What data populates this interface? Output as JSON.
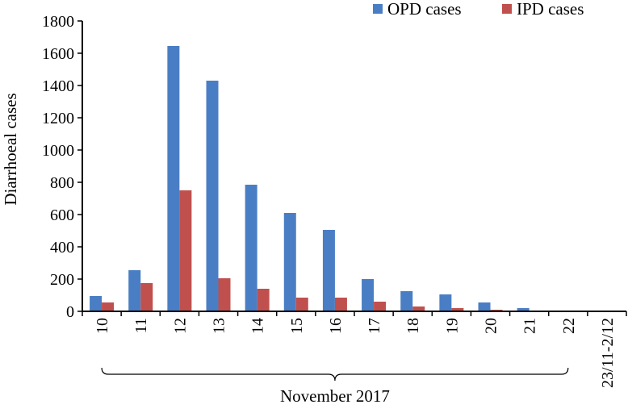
{
  "chart_data": {
    "type": "bar",
    "title": "",
    "ylabel": "Diarrhoeal cases",
    "xlabel": "",
    "group_label": "November 2017",
    "categories": [
      "10",
      "11",
      "12",
      "13",
      "14",
      "15",
      "16",
      "17",
      "18",
      "19",
      "20",
      "21",
      "22",
      "23/11-2/12"
    ],
    "ylim": [
      0,
      1800
    ],
    "yticks": [
      0,
      200,
      400,
      600,
      800,
      1000,
      1200,
      1400,
      1600,
      1800
    ],
    "grid": false,
    "legend_position": "top-right",
    "series": [
      {
        "name": "OPD cases",
        "color": "#4a7ec4",
        "values": [
          95,
          255,
          1645,
          1430,
          785,
          610,
          505,
          200,
          125,
          105,
          55,
          20,
          5,
          3
        ]
      },
      {
        "name": "IPD cases",
        "color": "#c0504d",
        "values": [
          55,
          175,
          750,
          205,
          140,
          85,
          85,
          60,
          30,
          20,
          10,
          3,
          1,
          0
        ]
      }
    ]
  }
}
